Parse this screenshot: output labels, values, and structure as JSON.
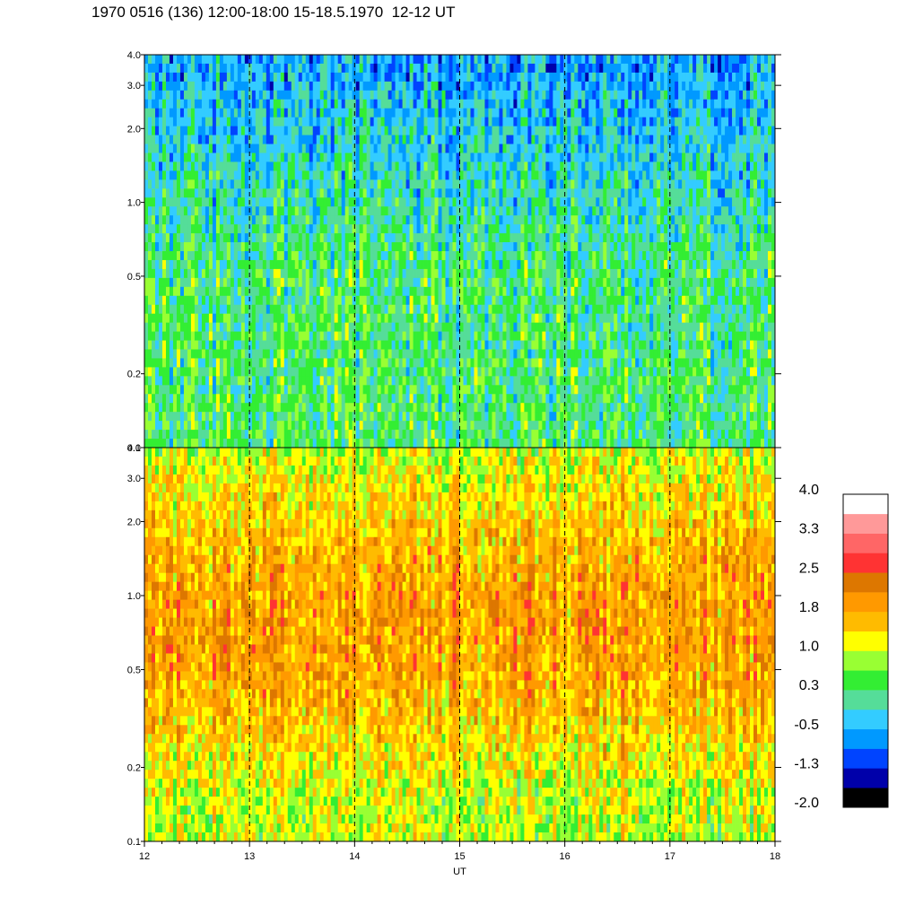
{
  "title": "1970 0516 (136) 12:00-18:00 15-18.5.1970  12-12 UT",
  "chart_data": {
    "type": "heatmap",
    "title": "1970 0516 (136) 12:00-18:00 15-18.5.1970  12-12 UT",
    "xlabel": "UT",
    "xlim": [
      12,
      18
    ],
    "x_ticks": [
      12,
      13,
      14,
      15,
      16,
      17,
      18
    ],
    "x_tick_labels": [
      "12",
      "13",
      "14",
      "15",
      "16",
      "17",
      "18"
    ],
    "dashed_verticals_at": [
      13,
      14,
      15,
      16,
      17
    ],
    "panels": [
      {
        "name": "top",
        "yscale": "log",
        "ylim": [
          0.1,
          4.0
        ],
        "y_ticks": [
          0.1,
          0.2,
          0.5,
          1.0,
          2.0,
          3.0,
          4.0
        ],
        "y_tick_labels": [
          "0.1",
          "0.2",
          "0.5",
          "1.0",
          "2.0",
          "3.0",
          "4.0"
        ],
        "value_range_typical": [
          -1.3,
          1.0
        ],
        "dominant_levels": [
          0.3,
          -0.5,
          1.0
        ]
      },
      {
        "name": "bottom",
        "yscale": "log",
        "ylim": [
          0.1,
          4.0
        ],
        "y_ticks": [
          0.1,
          0.2,
          0.5,
          1.0,
          2.0,
          3.0,
          4.0
        ],
        "y_tick_labels": [
          "0.1",
          "0.2",
          "0.5",
          "1.0",
          "2.0",
          "3.0",
          "4.0"
        ],
        "value_range_typical": [
          0.3,
          2.5
        ],
        "dominant_levels": [
          1.4,
          1.8,
          1.0
        ]
      }
    ],
    "colorbar": {
      "labels": [
        "4.0",
        "3.3",
        "2.5",
        "1.8",
        "1.0",
        "0.3",
        "-0.5",
        "-1.3",
        "-2.0"
      ],
      "range": [
        -2.0,
        4.0
      ],
      "colors": [
        "#000000",
        "#0000aa",
        "#0044ff",
        "#0099ff",
        "#33ccff",
        "#55dd99",
        "#33ee33",
        "#99ff33",
        "#ffff00",
        "#ffbb00",
        "#ff9900",
        "#dd7700",
        "#ff3333",
        "#ff6666",
        "#ff9999",
        "#ffffff"
      ]
    }
  }
}
